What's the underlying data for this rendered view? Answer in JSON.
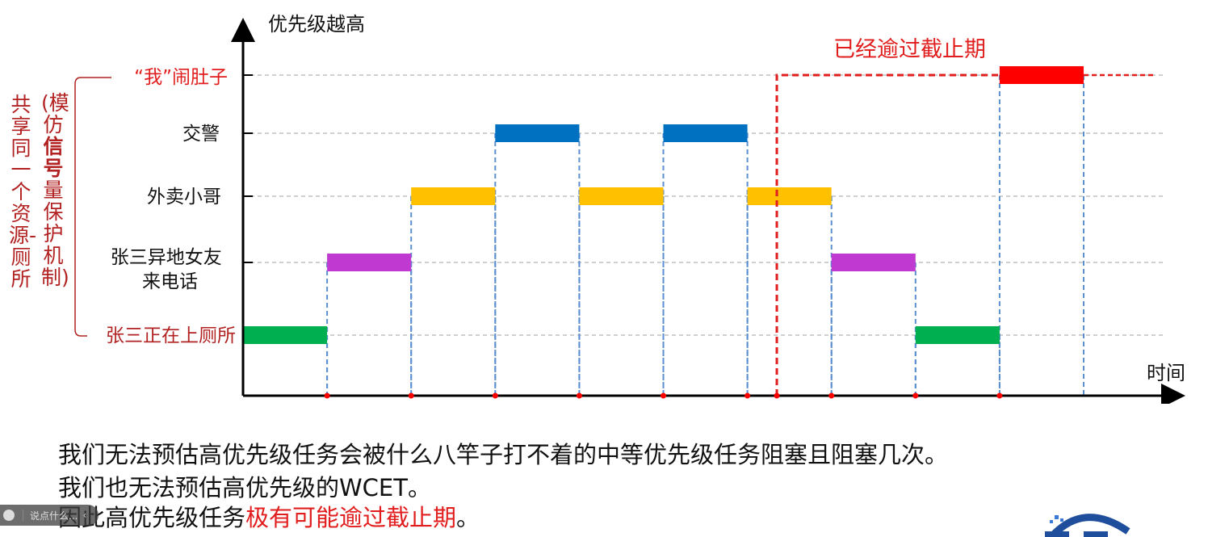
{
  "y_axis_label": "优先级越高",
  "x_axis_label": "时间",
  "deadline_label": "已经逾过截止期",
  "levels": [
    {
      "key": "me",
      "label": "“我”闹肚子",
      "color": "#e11d1d"
    },
    {
      "key": "police",
      "label": "交警",
      "color": "#111111"
    },
    {
      "key": "delivery",
      "label": "外卖小哥",
      "color": "#111111"
    },
    {
      "key": "call",
      "label": "张三异地女友\n来电话",
      "color": "#111111"
    },
    {
      "key": "zhang",
      "label": "张三正在上厕所",
      "color": "#b22222"
    }
  ],
  "colors": {
    "green": "#00b050",
    "purple": "#c03ad1",
    "yellow": "#ffc000",
    "blue": "#0070c0",
    "red": "#ff0000",
    "axis": "#000000",
    "guide": "#5b8fd0",
    "grid": "#bfbfbf",
    "deadline": "#e11d1d",
    "tick": "#ff0000"
  },
  "tasks": [
    {
      "level": "zhang",
      "color": "green",
      "start": 0,
      "end": 1
    },
    {
      "level": "call",
      "color": "purple",
      "start": 1,
      "end": 2
    },
    {
      "level": "delivery",
      "color": "yellow",
      "start": 2,
      "end": 3
    },
    {
      "level": "police",
      "color": "blue",
      "start": 3,
      "end": 4
    },
    {
      "level": "delivery",
      "color": "yellow",
      "start": 4,
      "end": 5
    },
    {
      "level": "police",
      "color": "blue",
      "start": 5,
      "end": 6
    },
    {
      "level": "delivery",
      "color": "yellow",
      "start": 6,
      "end": 7
    },
    {
      "level": "call",
      "color": "purple",
      "start": 7,
      "end": 8
    },
    {
      "level": "zhang",
      "color": "green",
      "start": 8,
      "end": 9
    },
    {
      "level": "me",
      "color": "red",
      "start": 9,
      "end": 10
    }
  ],
  "event_ticks": [
    1,
    2,
    3,
    4,
    5,
    6,
    7,
    8,
    9
  ],
  "deadline_time": 6.35,
  "left_notes": {
    "outer": "共享同一个资源-厕所",
    "inner_pre": "(模仿",
    "inner_bold": "信号",
    "inner_post": "量保护机制)"
  },
  "captions": {
    "line1": "我们无法预估高优先级任务会被什么八竿子打不着的中等优先级任务阻塞且阻塞几次。",
    "line2": "我们也无法预估高优先级的WCET。",
    "line3_pre": "因此高优先级任务",
    "line3_highlight": "极有可能逾过截止期",
    "line3_post": "。"
  },
  "chat_placeholder": "说点什么..."
}
